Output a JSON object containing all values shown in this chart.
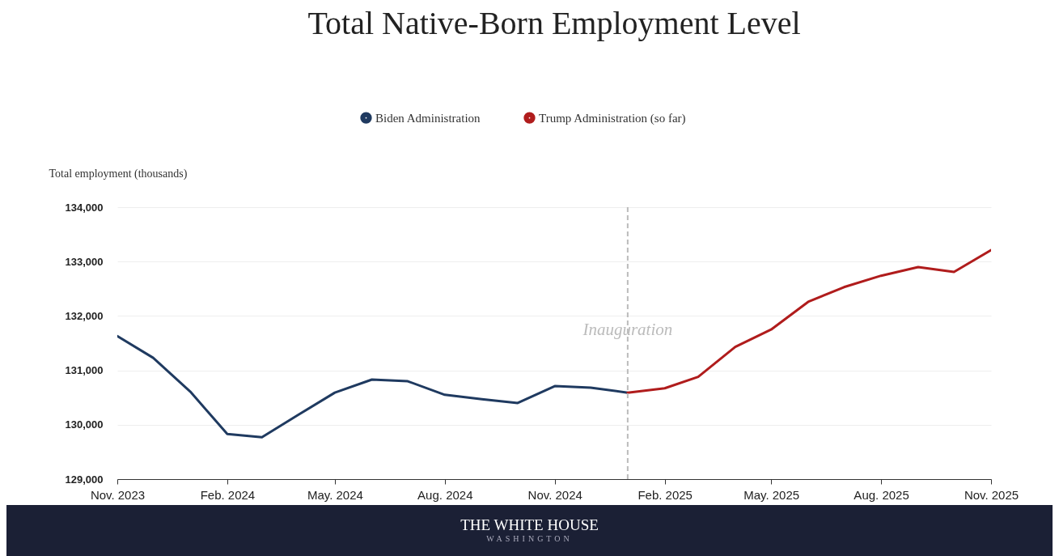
{
  "chart_data": {
    "type": "line",
    "title": "Total Native-Born Employment Level",
    "ylabel": "Total employment (thousands)",
    "series": [
      {
        "name": "Biden Administration",
        "color": "#1f3a60",
        "x": [
          "2023-11",
          "2023-12",
          "2024-01",
          "2024-02",
          "2024-03",
          "2024-04",
          "2024-05",
          "2024-06",
          "2024-07",
          "2024-08",
          "2024-09",
          "2024-10",
          "2024-11",
          "2024-12",
          "2025-01"
        ],
        "values": [
          131630,
          131230,
          130610,
          129830,
          129770,
          130190,
          130590,
          130830,
          130800,
          130550,
          130470,
          130400,
          130710,
          130680,
          130590
        ]
      },
      {
        "name": "Trump Administration (so far)",
        "color": "#b01c1c",
        "x": [
          "2025-01",
          "2025-02",
          "2025-03",
          "2025-04",
          "2025-05",
          "2025-06",
          "2025-07",
          "2025-08",
          "2025-09",
          "2025-10",
          "2025-11"
        ],
        "values": [
          130590,
          130670,
          130880,
          131430,
          131750,
          132260,
          132530,
          132740,
          132900,
          132810,
          133210
        ]
      }
    ],
    "xlim": [
      "2023-11",
      "2025-11"
    ],
    "xticks": [
      {
        "value": "2023-11",
        "label": "Nov. 2023"
      },
      {
        "value": "2024-02",
        "label": "Feb. 2024"
      },
      {
        "value": "2024-05",
        "label": "May. 2024"
      },
      {
        "value": "2024-08",
        "label": "Aug. 2024"
      },
      {
        "value": "2024-11",
        "label": "Nov. 2024"
      },
      {
        "value": "2025-02",
        "label": "Feb. 2025"
      },
      {
        "value": "2025-05",
        "label": "May. 2025"
      },
      {
        "value": "2025-08",
        "label": "Aug. 2025"
      },
      {
        "value": "2025-11",
        "label": "Nov. 2025"
      }
    ],
    "ylim": [
      129000,
      134000
    ],
    "yticks": [
      {
        "value": 129000,
        "label": "129,000"
      },
      {
        "value": 130000,
        "label": "130,000"
      },
      {
        "value": 131000,
        "label": "131,000"
      },
      {
        "value": 132000,
        "label": "132,000"
      },
      {
        "value": 133000,
        "label": "133,000"
      },
      {
        "value": 134000,
        "label": "134,000"
      }
    ],
    "ref_lines": [
      {
        "axis": "x",
        "value": "2025-01",
        "label": "Inauguration",
        "color": "#bbbbbb",
        "line_style": "dashed"
      }
    ],
    "grid": "y",
    "legend": "top",
    "annotations": [
      "THE WHITE HOUSE",
      "WASHINGTON"
    ]
  }
}
